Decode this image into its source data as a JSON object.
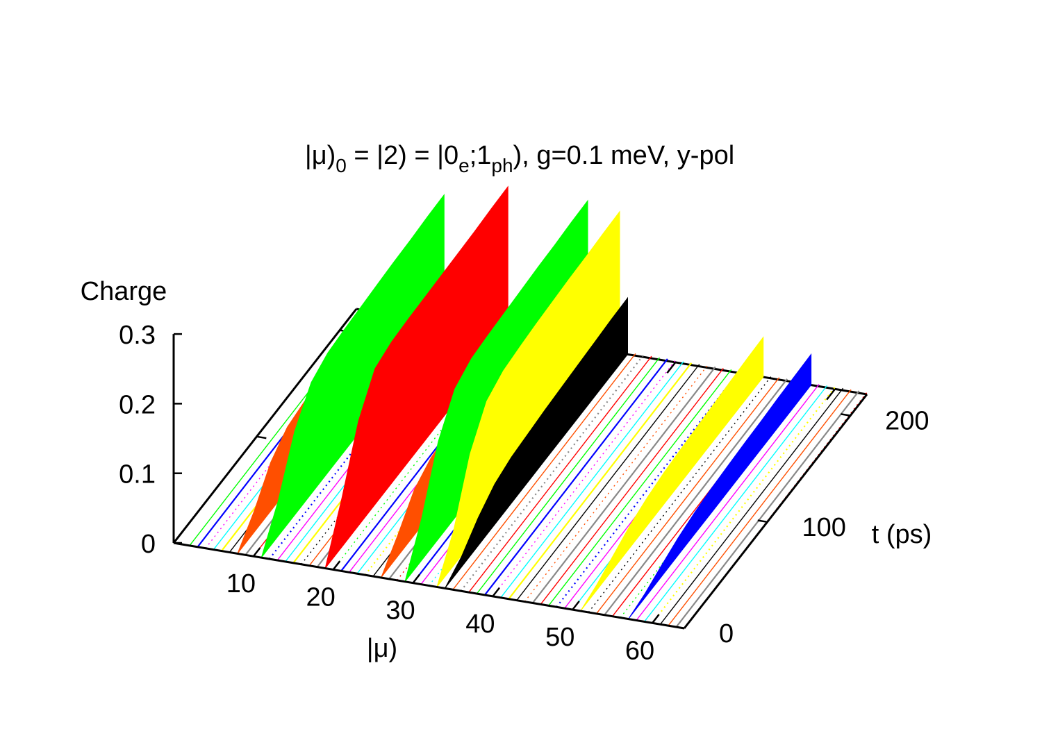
{
  "chart_data": {
    "type": "fence3d",
    "title_parts": [
      "|μ)",
      "0",
      " = |2) = |0",
      "e",
      ";1",
      "ph",
      "), g=0.1 meV, y-pol"
    ],
    "xlabel": "|μ)",
    "ylabel": "t (ps)",
    "zlabel": "Charge",
    "xlim": [
      0,
      64
    ],
    "ylim": [
      0,
      220
    ],
    "zlim": [
      0,
      0.3
    ],
    "xticks": [
      "10",
      "20",
      "30",
      "40",
      "50",
      "60"
    ],
    "xtick_values": [
      10,
      20,
      30,
      40,
      50,
      60
    ],
    "yticks": [
      "0",
      "100",
      "200"
    ],
    "ytick_values": [
      0,
      100,
      200
    ],
    "zticks": [
      "0",
      "0.1",
      "0.2",
      "0.3"
    ],
    "ztick_values": [
      0,
      0.1,
      0.2,
      0.3
    ],
    "palette": [
      "#ff0000",
      "#00ff00",
      "#0000ff",
      "#ff00ff",
      "#00ffff",
      "#ffff00",
      "#000000",
      "#ff4f00",
      "#888888"
    ],
    "t": [
      0,
      20,
      40,
      60,
      80,
      100,
      120,
      140,
      160,
      180,
      200,
      220
    ],
    "series": [
      {
        "mu": 8,
        "color": "#ff4f00",
        "values": [
          0,
          0.03,
          0.07,
          0.09,
          0.095,
          0.097,
          0.098,
          0.099,
          0.1,
          0.1,
          0.1,
          0.1
        ]
      },
      {
        "mu": 11,
        "color": "#00ff00",
        "values": [
          0,
          0.05,
          0.12,
          0.16,
          0.172,
          0.175,
          0.177,
          0.179,
          0.181,
          0.182,
          0.184,
          0.185
        ]
      },
      {
        "mu": 19,
        "color": "#ff0000",
        "values": [
          0,
          0.07,
          0.15,
          0.195,
          0.203,
          0.205,
          0.206,
          0.207,
          0.208,
          0.209,
          0.211,
          0.212
        ]
      },
      {
        "mu": 26,
        "color": "#ff4f00",
        "values": [
          0,
          0.03,
          0.065,
          0.08,
          0.085,
          0.087,
          0.088,
          0.089,
          0.09,
          0.09,
          0.09,
          0.09
        ]
      },
      {
        "mu": 29,
        "color": "#00ff00",
        "values": [
          0,
          0.06,
          0.14,
          0.185,
          0.198,
          0.201,
          0.203,
          0.205,
          0.207,
          0.208,
          0.21,
          0.211
        ]
      },
      {
        "mu": 33,
        "color": "#ffff00",
        "values": [
          0,
          0.05,
          0.13,
          0.175,
          0.188,
          0.192,
          0.195,
          0.197,
          0.199,
          0.2,
          0.202,
          0.203
        ]
      },
      {
        "mu": 34,
        "color": "#000000",
        "values": [
          0,
          0.015,
          0.04,
          0.058,
          0.066,
          0.069,
          0.072,
          0.074,
          0.076,
          0.078,
          0.08,
          0.081
        ]
      },
      {
        "mu": 51,
        "color": "#ffff00",
        "values": [
          0,
          0.008,
          0.02,
          0.032,
          0.04,
          0.045,
          0.048,
          0.05,
          0.052,
          0.054,
          0.056,
          0.057
        ]
      },
      {
        "mu": 57,
        "color": "#0000ff",
        "values": [
          0,
          0.006,
          0.016,
          0.025,
          0.031,
          0.035,
          0.037,
          0.039,
          0.04,
          0.042,
          0.043,
          0.044
        ]
      }
    ],
    "minor_series": {
      "mu": [
        2,
        3,
        4,
        5,
        6,
        7,
        9,
        10,
        12,
        13,
        14,
        15,
        16,
        17,
        18,
        20,
        21,
        22,
        23,
        24,
        25,
        27,
        28,
        30,
        31,
        32,
        35,
        36,
        37,
        38,
        39,
        40,
        41,
        42,
        43,
        44,
        45,
        46,
        47,
        48,
        49,
        50,
        52,
        53,
        54,
        55,
        56,
        58,
        59,
        60,
        61,
        62,
        63,
        64
      ],
      "max_charge": 0.003
    }
  }
}
